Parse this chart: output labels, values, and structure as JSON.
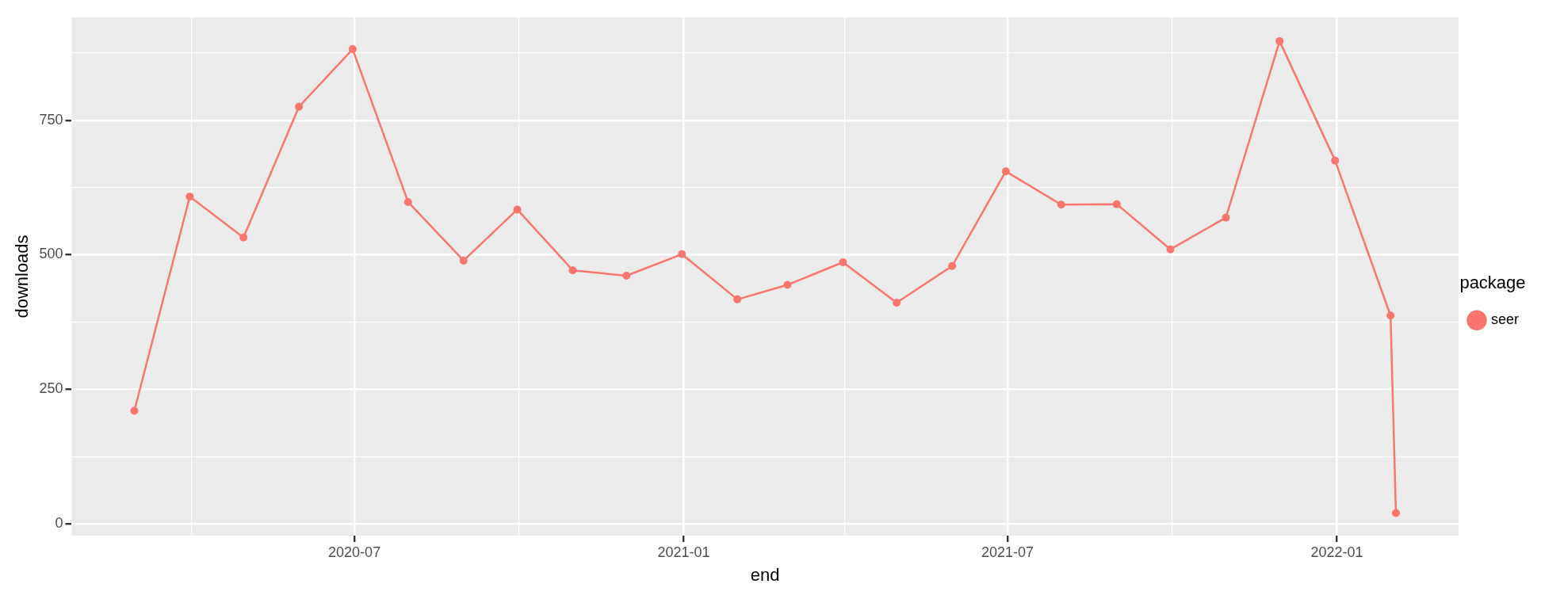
{
  "chart_data": {
    "type": "line",
    "xlabel": "end",
    "ylabel": "downloads",
    "legend_title": "package",
    "x": [
      "2020-02-29",
      "2020-03-31",
      "2020-04-30",
      "2020-05-31",
      "2020-06-30",
      "2020-07-31",
      "2020-08-31",
      "2020-09-30",
      "2020-10-31",
      "2020-11-30",
      "2020-12-31",
      "2021-01-31",
      "2021-02-28",
      "2021-03-31",
      "2021-04-30",
      "2021-05-31",
      "2021-06-30",
      "2021-07-31",
      "2021-08-31",
      "2021-09-30",
      "2021-10-31",
      "2021-11-30",
      "2021-12-31",
      "2022-01-31",
      "2022-02-03"
    ],
    "series": [
      {
        "name": "seer",
        "color": "#f8766d",
        "values": [
          210,
          608,
          532,
          775,
          882,
          598,
          489,
          584,
          471,
          461,
          501,
          417,
          444,
          486,
          411,
          479,
          655,
          593,
          594,
          510,
          569,
          897,
          675,
          387,
          20
        ]
      }
    ],
    "xlim": [
      "2020-01-25",
      "2022-03-10"
    ],
    "xticks": [
      {
        "value": "2020-04-01",
        "label": null
      },
      {
        "value": "2020-07-01",
        "label": "2020-07"
      },
      {
        "value": "2020-10-01",
        "label": null
      },
      {
        "value": "2021-01-01",
        "label": "2021-01"
      },
      {
        "value": "2021-04-01",
        "label": null
      },
      {
        "value": "2021-07-01",
        "label": "2021-07"
      },
      {
        "value": "2021-10-01",
        "label": null
      },
      {
        "value": "2022-01-01",
        "label": "2022-01"
      }
    ],
    "ylim": [
      -22,
      941
    ],
    "yticks": [
      0,
      {
        "value": 125,
        "label": null
      },
      250,
      {
        "value": 375,
        "label": null
      },
      500,
      {
        "value": 625,
        "label": null
      },
      750,
      {
        "value": 875,
        "label": null
      }
    ],
    "grid": true,
    "legend": "right",
    "marker": "circle",
    "line_style": "solid"
  }
}
